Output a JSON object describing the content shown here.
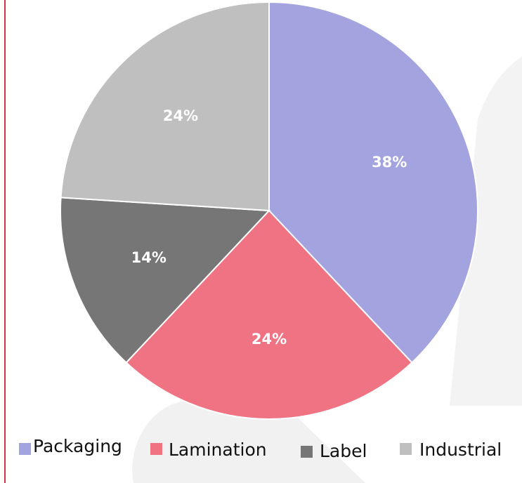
{
  "chart_data": {
    "type": "pie",
    "categories": [
      "Packaging",
      "Lamination",
      "Label",
      "Industrial"
    ],
    "values": [
      38,
      24,
      14,
      24
    ],
    "value_labels": [
      "38%",
      "24%",
      "14%",
      "24%"
    ],
    "colors": [
      "#a3a3df",
      "#ef7383",
      "#767676",
      "#bfbfbf"
    ],
    "start_angle_deg": 0,
    "direction": "clockwise",
    "legend_position": "bottom"
  },
  "legend": {
    "items": [
      {
        "label": "Packaging",
        "color": "#a3a3df"
      },
      {
        "label": "Lamination",
        "color": "#ef7383"
      },
      {
        "label": "Label",
        "color": "#767676"
      },
      {
        "label": "Industrial",
        "color": "#bfbfbf"
      }
    ]
  },
  "accent_color": "#d0314a"
}
